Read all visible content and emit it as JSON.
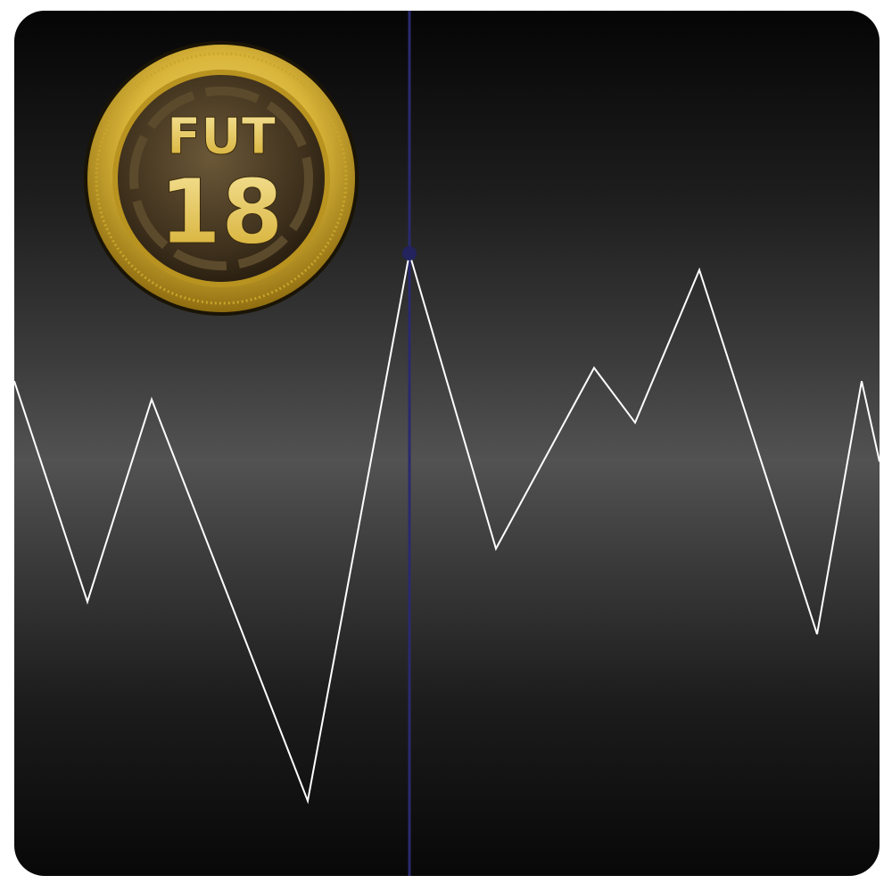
{
  "logo": {
    "icon": "fut-coin-icon",
    "line1": "FUT",
    "line2": "18",
    "colors": {
      "gold": "#e3c24a",
      "gold_dark": "#9c7a12",
      "inner": "#4a3a22"
    }
  },
  "price_graph": {
    "line_color": "#ffffff",
    "cursor_color": "#2a2a6e",
    "values": [
      0.575,
      0.309,
      0.553,
      0.069,
      0.729,
      0.373,
      0.591,
      0.525,
      0.709,
      0.27,
      0.575,
      0.478
    ],
    "cursor_index": 4
  }
}
